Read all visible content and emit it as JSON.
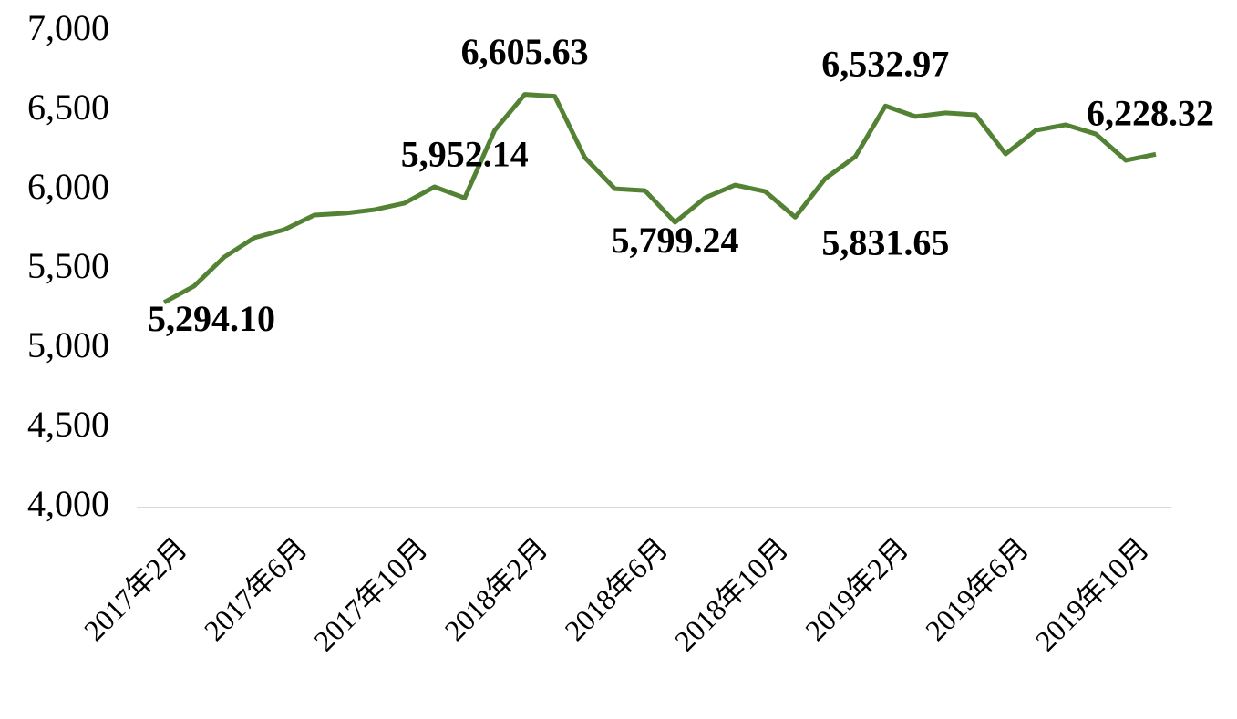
{
  "chart_data": {
    "type": "line",
    "categories": [
      "2017年2月",
      null,
      null,
      null,
      "2017年6月",
      null,
      null,
      null,
      "2017年10月",
      null,
      null,
      null,
      "2018年2月",
      null,
      null,
      null,
      "2018年6月",
      null,
      null,
      null,
      "2018年10月",
      null,
      null,
      null,
      "2019年2月",
      null,
      null,
      null,
      "2019年6月",
      null,
      null,
      null,
      "2019年10月",
      null
    ],
    "series": [
      {
        "color": "#548235",
        "values": [
          5294.1,
          5397,
          5580,
          5701,
          5753,
          5845,
          5856,
          5879,
          5920,
          6023,
          5952.14,
          6379,
          6605.63,
          6594,
          6207,
          6011,
          5999,
          5799.24,
          5954,
          6034,
          5994,
          5831.65,
          6075,
          6213,
          6532.97,
          6466,
          6489,
          6477,
          6230,
          6379,
          6414,
          6356,
          6190,
          6228.32
        ],
        "value_labels": [
          "5,294.10",
          null,
          null,
          null,
          null,
          null,
          null,
          null,
          null,
          null,
          "5,952.14",
          null,
          "6,605.63",
          null,
          null,
          null,
          null,
          "5,799.24",
          null,
          null,
          null,
          "5,831.65",
          null,
          null,
          "6,532.97",
          null,
          null,
          null,
          null,
          null,
          null,
          null,
          null,
          "6,228.32"
        ]
      }
    ],
    "ylim": [
      4000,
      7000
    ],
    "yticks": [
      {
        "value": 4000,
        "label": "4,000"
      },
      {
        "value": 4500,
        "label": "4,500"
      },
      {
        "value": 5000,
        "label": "5,000"
      },
      {
        "value": 5500,
        "label": "5,500"
      },
      {
        "value": 6000,
        "label": "6,000"
      },
      {
        "value": 6500,
        "label": "6,500"
      },
      {
        "value": 7000,
        "label": "7,000"
      }
    ]
  }
}
